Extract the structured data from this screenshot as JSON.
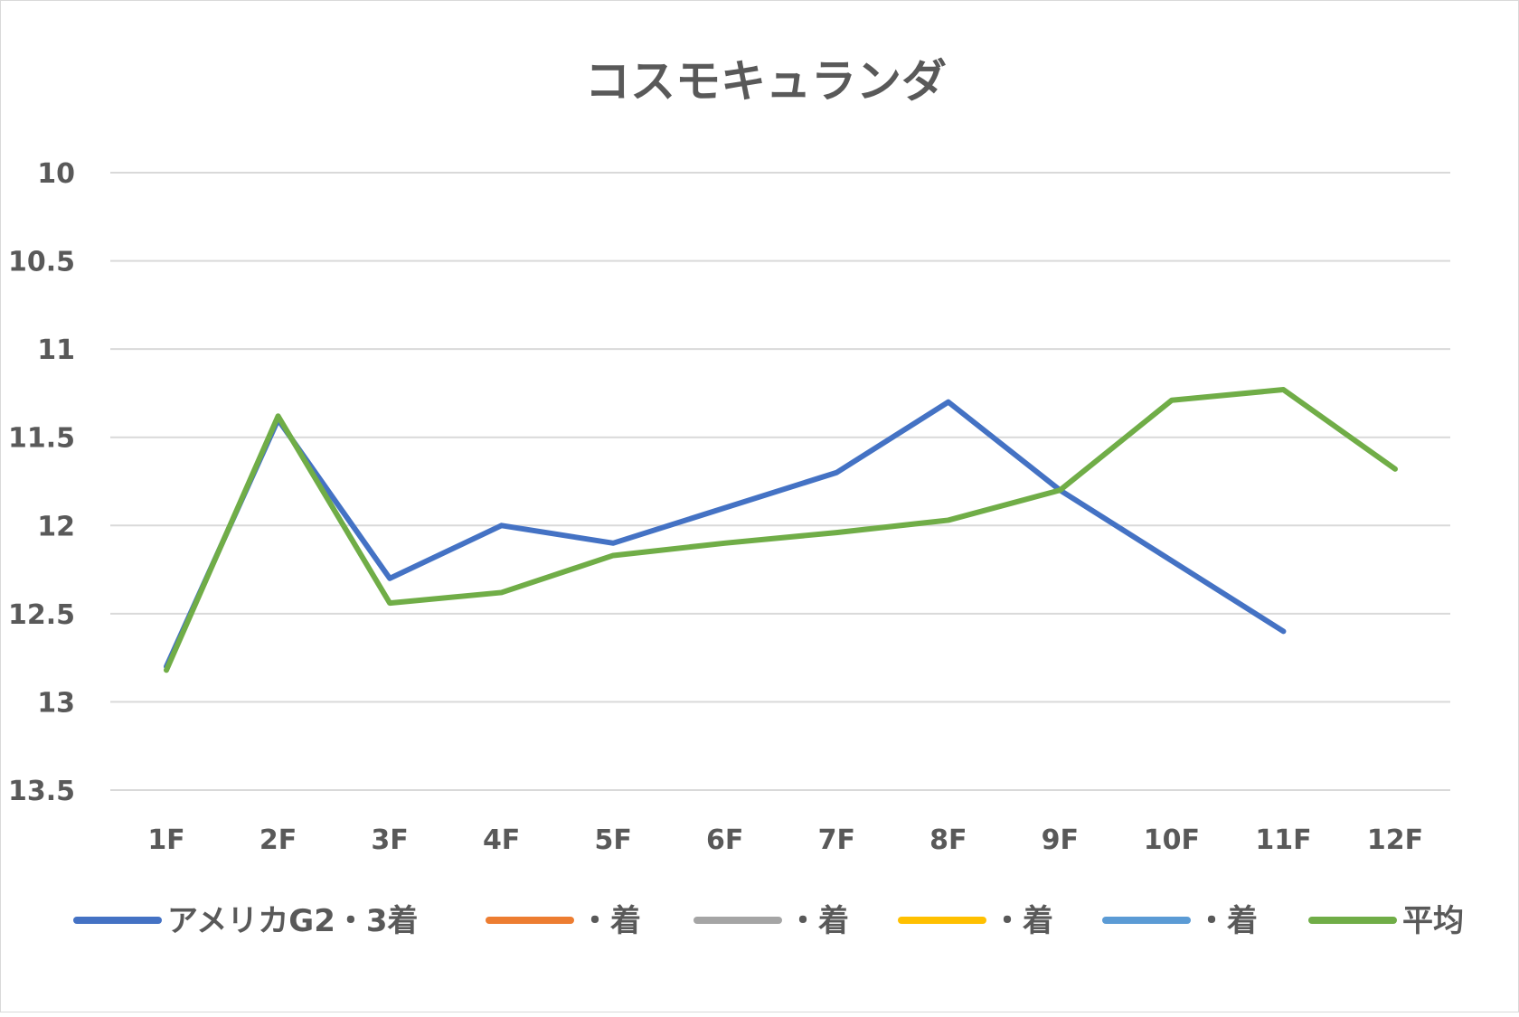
{
  "chart_data": {
    "type": "line",
    "title": "コスモキュランダ",
    "xlabel": "",
    "ylabel": "",
    "categories": [
      "1F",
      "2F",
      "3F",
      "4F",
      "5F",
      "6F",
      "7F",
      "8F",
      "9F",
      "10F",
      "11F",
      "12F"
    ],
    "ylim": [
      10,
      13.5
    ],
    "y_inverted": true,
    "yticks": [
      "10",
      "10.5",
      "11",
      "11.5",
      "12",
      "12.5",
      "13",
      "13.5"
    ],
    "grid": true,
    "legend_position": "bottom",
    "series": [
      {
        "name": "アメリカG2・3着",
        "color": "#4472C4",
        "values": [
          12.8,
          11.4,
          12.3,
          12.0,
          12.1,
          11.9,
          11.7,
          11.3,
          11.8,
          12.2,
          12.6,
          null
        ]
      },
      {
        "name": "・着",
        "color": "#ED7D31",
        "values": [
          null,
          null,
          null,
          null,
          null,
          null,
          null,
          null,
          null,
          null,
          null,
          null
        ]
      },
      {
        "name": "・着",
        "color": "#A5A5A5",
        "values": [
          null,
          null,
          null,
          null,
          null,
          null,
          null,
          null,
          null,
          null,
          null,
          null
        ]
      },
      {
        "name": "・着",
        "color": "#FFC000",
        "values": [
          null,
          null,
          null,
          null,
          null,
          null,
          null,
          null,
          null,
          null,
          null,
          null
        ]
      },
      {
        "name": "・着",
        "color": "#5B9BD5",
        "values": [
          null,
          null,
          null,
          null,
          null,
          null,
          null,
          null,
          null,
          null,
          null,
          null
        ]
      },
      {
        "name": "平均",
        "color": "#70AD47",
        "values": [
          12.82,
          11.38,
          12.44,
          12.38,
          12.17,
          12.1,
          12.04,
          11.97,
          11.8,
          11.29,
          11.23,
          11.68
        ]
      }
    ]
  }
}
